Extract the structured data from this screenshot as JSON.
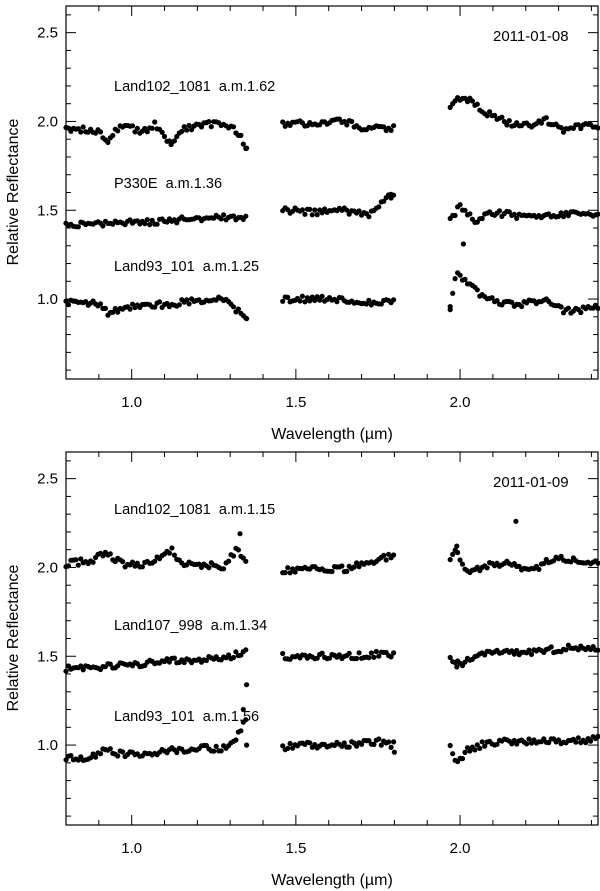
{
  "chart_data": [
    {
      "type": "scatter",
      "panel": "top",
      "date": "2011-01-08",
      "xlabel": "Wavelength (µm)",
      "ylabel": "Relative Reflectance",
      "xlim": [
        0.8,
        2.42
      ],
      "ylim": [
        0.55,
        2.65
      ],
      "xticks": [
        1.0,
        1.5,
        2.0
      ],
      "xtick_labels": [
        "1.0",
        "1.5",
        "2.0"
      ],
      "yticks": [
        1.0,
        1.5,
        2.0,
        2.5
      ],
      "ytick_labels": [
        "1.0",
        "1.5",
        "2.0",
        "2.5"
      ],
      "grid": false,
      "series": [
        {
          "name": "Land102_1081  a.m.1.62",
          "base": 2.0,
          "segments": [
            [
              0.8,
              1.35
            ],
            [
              1.46,
              1.8
            ],
            [
              1.97,
              2.42
            ]
          ],
          "anchors": [
            [
              0.8,
              1.96
            ],
            [
              0.9,
              1.95
            ],
            [
              0.93,
              1.89
            ],
            [
              0.96,
              1.97
            ],
            [
              1.0,
              1.96
            ],
            [
              1.03,
              1.94
            ],
            [
              1.07,
              1.98
            ],
            [
              1.12,
              1.88
            ],
            [
              1.15,
              1.96
            ],
            [
              1.2,
              1.97
            ],
            [
              1.25,
              1.99
            ],
            [
              1.3,
              1.98
            ],
            [
              1.33,
              1.93
            ],
            [
              1.35,
              1.85
            ],
            [
              1.46,
              1.99
            ],
            [
              1.55,
              1.99
            ],
            [
              1.65,
              2.0
            ],
            [
              1.7,
              1.97
            ],
            [
              1.8,
              1.96
            ],
            [
              1.97,
              2.07
            ],
            [
              1.99,
              2.14
            ],
            [
              2.03,
              2.12
            ],
            [
              2.08,
              2.05
            ],
            [
              2.15,
              1.99
            ],
            [
              2.22,
              1.97
            ],
            [
              2.26,
              2.01
            ],
            [
              2.32,
              1.95
            ],
            [
              2.38,
              1.98
            ],
            [
              2.42,
              1.98
            ]
          ],
          "outliers": [
            [
              1.35,
              1.85
            ],
            [
              1.12,
              1.87
            ]
          ]
        },
        {
          "name": "P330E  a.m.1.36",
          "base": 1.5,
          "segments": [
            [
              0.8,
              1.35
            ],
            [
              1.46,
              1.8
            ],
            [
              1.97,
              2.42
            ]
          ],
          "anchors": [
            [
              0.8,
              1.42
            ],
            [
              0.9,
              1.42
            ],
            [
              1.0,
              1.43
            ],
            [
              1.1,
              1.44
            ],
            [
              1.2,
              1.45
            ],
            [
              1.3,
              1.46
            ],
            [
              1.35,
              1.46
            ],
            [
              1.46,
              1.5
            ],
            [
              1.55,
              1.49
            ],
            [
              1.65,
              1.5
            ],
            [
              1.72,
              1.47
            ],
            [
              1.77,
              1.55
            ],
            [
              1.8,
              1.6
            ],
            [
              1.97,
              1.45
            ],
            [
              2.0,
              1.52
            ],
            [
              2.05,
              1.44
            ],
            [
              2.1,
              1.49
            ],
            [
              2.2,
              1.46
            ],
            [
              2.3,
              1.48
            ],
            [
              2.42,
              1.47
            ]
          ],
          "outliers": [
            [
              2.01,
              1.31
            ],
            [
              1.79,
              1.59
            ]
          ]
        },
        {
          "name": "Land93_101  a.m.1.25",
          "base": 1.0,
          "segments": [
            [
              0.8,
              1.35
            ],
            [
              1.46,
              1.8
            ],
            [
              1.97,
              2.42
            ]
          ],
          "anchors": [
            [
              0.8,
              0.98
            ],
            [
              0.9,
              0.97
            ],
            [
              0.93,
              0.92
            ],
            [
              1.0,
              0.96
            ],
            [
              1.1,
              0.97
            ],
            [
              1.2,
              0.99
            ],
            [
              1.27,
              1.01
            ],
            [
              1.3,
              0.96
            ],
            [
              1.35,
              0.9
            ],
            [
              1.46,
              1.0
            ],
            [
              1.55,
              1.0
            ],
            [
              1.65,
              1.0
            ],
            [
              1.7,
              0.97
            ],
            [
              1.8,
              1.0
            ],
            [
              1.97,
              0.96
            ],
            [
              1.99,
              1.15
            ],
            [
              2.03,
              1.08
            ],
            [
              2.08,
              1.0
            ],
            [
              2.15,
              0.97
            ],
            [
              2.22,
              0.98
            ],
            [
              2.26,
              1.01
            ],
            [
              2.32,
              0.93
            ],
            [
              2.42,
              0.95
            ]
          ],
          "outliers": [
            [
              1.35,
              0.89
            ],
            [
              1.97,
              0.94
            ]
          ]
        }
      ]
    },
    {
      "type": "scatter",
      "panel": "bottom",
      "date": "2011-01-09",
      "xlabel": "Wavelength (µm)",
      "ylabel": "Relative Reflectance",
      "xlim": [
        0.8,
        2.42
      ],
      "ylim": [
        0.55,
        2.65
      ],
      "xticks": [
        1.0,
        1.5,
        2.0
      ],
      "xtick_labels": [
        "1.0",
        "1.5",
        "2.0"
      ],
      "yticks": [
        1.0,
        1.5,
        2.0,
        2.5
      ],
      "ytick_labels": [
        "1.0",
        "1.5",
        "2.0",
        "2.5"
      ],
      "grid": false,
      "series": [
        {
          "name": "Land102_1081  a.m.1.15",
          "base": 2.0,
          "segments": [
            [
              0.8,
              1.35
            ],
            [
              1.46,
              1.8
            ],
            [
              1.97,
              2.42
            ]
          ],
          "anchors": [
            [
              0.8,
              2.02
            ],
            [
              0.88,
              2.04
            ],
            [
              0.92,
              2.08
            ],
            [
              0.98,
              2.01
            ],
            [
              1.05,
              2.02
            ],
            [
              1.12,
              2.1
            ],
            [
              1.15,
              2.02
            ],
            [
              1.22,
              2.01
            ],
            [
              1.28,
              2.01
            ],
            [
              1.32,
              2.1
            ],
            [
              1.35,
              2.03
            ],
            [
              1.46,
              1.98
            ],
            [
              1.55,
              2.0
            ],
            [
              1.65,
              1.99
            ],
            [
              1.72,
              2.03
            ],
            [
              1.8,
              2.07
            ],
            [
              1.97,
              2.06
            ],
            [
              1.99,
              2.1
            ],
            [
              2.02,
              1.97
            ],
            [
              2.08,
              2.01
            ],
            [
              2.15,
              2.02
            ],
            [
              2.22,
              1.98
            ],
            [
              2.28,
              2.05
            ],
            [
              2.35,
              2.04
            ],
            [
              2.42,
              2.03
            ]
          ],
          "outliers": [
            [
              1.33,
              2.19
            ],
            [
              2.17,
              2.26
            ],
            [
              1.99,
              2.12
            ]
          ]
        },
        {
          "name": "Land107_998  a.m.1.34",
          "base": 1.5,
          "segments": [
            [
              0.8,
              1.35
            ],
            [
              1.46,
              1.8
            ],
            [
              1.97,
              2.42
            ]
          ],
          "anchors": [
            [
              0.8,
              1.43
            ],
            [
              0.9,
              1.44
            ],
            [
              1.0,
              1.45
            ],
            [
              1.1,
              1.47
            ],
            [
              1.2,
              1.48
            ],
            [
              1.3,
              1.5
            ],
            [
              1.34,
              1.52
            ],
            [
              1.46,
              1.5
            ],
            [
              1.55,
              1.5
            ],
            [
              1.65,
              1.5
            ],
            [
              1.75,
              1.51
            ],
            [
              1.8,
              1.51
            ],
            [
              1.97,
              1.48
            ],
            [
              2.0,
              1.45
            ],
            [
              2.05,
              1.51
            ],
            [
              2.15,
              1.52
            ],
            [
              2.25,
              1.53
            ],
            [
              2.35,
              1.55
            ],
            [
              2.42,
              1.55
            ]
          ],
          "outliers": [
            [
              1.35,
              1.34
            ],
            [
              1.99,
              1.44
            ]
          ]
        },
        {
          "name": "Land93_101  a.m.1.56",
          "base": 1.0,
          "segments": [
            [
              0.8,
              1.35
            ],
            [
              1.46,
              1.8
            ],
            [
              1.97,
              2.42
            ]
          ],
          "anchors": [
            [
              0.8,
              0.93
            ],
            [
              0.88,
              0.93
            ],
            [
              0.92,
              0.98
            ],
            [
              0.96,
              0.95
            ],
            [
              1.05,
              0.95
            ],
            [
              1.12,
              0.97
            ],
            [
              1.2,
              0.98
            ],
            [
              1.28,
              0.98
            ],
            [
              1.32,
              1.05
            ],
            [
              1.35,
              1.15
            ],
            [
              1.46,
              0.99
            ],
            [
              1.55,
              1.0
            ],
            [
              1.65,
              1.0
            ],
            [
              1.75,
              1.02
            ],
            [
              1.8,
              1.0
            ],
            [
              1.97,
              0.99
            ],
            [
              1.99,
              0.9
            ],
            [
              2.02,
              0.97
            ],
            [
              2.08,
              1.01
            ],
            [
              2.15,
              1.02
            ],
            [
              2.25,
              1.02
            ],
            [
              2.35,
              1.02
            ],
            [
              2.42,
              1.04
            ]
          ],
          "outliers": [
            [
              1.34,
              1.2
            ],
            [
              1.35,
              1.0
            ],
            [
              1.8,
              0.96
            ]
          ]
        }
      ]
    }
  ]
}
